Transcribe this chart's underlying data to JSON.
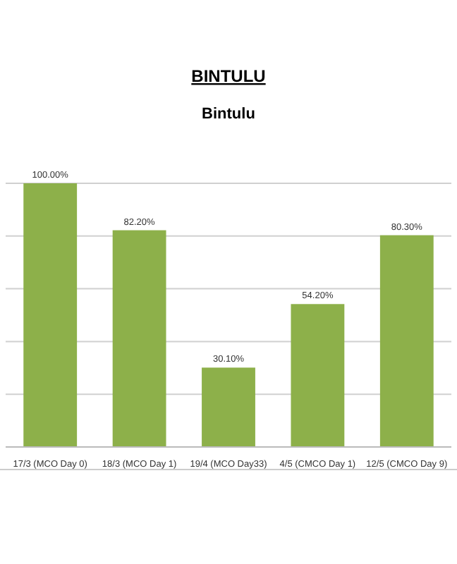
{
  "chart_data": {
    "type": "bar",
    "title": "BINTULU",
    "subtitle": "Bintulu",
    "categories": [
      "17/3 (MCO Day 0)",
      "18/3 (MCO Day 1)",
      "19/4 (MCO Day33)",
      "4/5 (CMCO Day 1)",
      "12/5 (CMCO Day 9)"
    ],
    "values": [
      100,
      82.2,
      30.1,
      54.2,
      80.3
    ],
    "value_labels": [
      "100.00%",
      "82.20%",
      "30.10%",
      "54.20%",
      "80.30%"
    ],
    "color": "#8db04a",
    "ylim": [
      0,
      100
    ],
    "yticks": [
      {
        "value": 0,
        "label": null
      },
      {
        "value": 20,
        "label": null
      },
      {
        "value": 40,
        "label": null
      },
      {
        "value": 60,
        "label": null
      },
      {
        "value": 80,
        "label": null
      },
      {
        "value": 100,
        "label": null
      }
    ],
    "grid": "y",
    "tick_labels": "x"
  }
}
